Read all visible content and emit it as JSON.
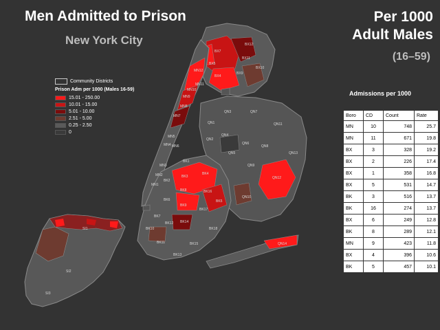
{
  "header": {
    "title": "Men Admitted to Prison",
    "subtitle": "New York City",
    "per_line1": "Per 1000",
    "per_line2": "Adult Males",
    "age_range": "(16–59)"
  },
  "legend": {
    "boundary_label": "Community Districts",
    "title": "Prison Adm per 1000 (Males 16-59)",
    "classes": [
      {
        "label": "15.01 - 250.00",
        "color": "#ff1a1a"
      },
      {
        "label": "10.01 - 15.00",
        "color": "#c81414"
      },
      {
        "label": "5.01 - 10.00",
        "color": "#7a0c0c"
      },
      {
        "label": "2.51 - 5.00",
        "color": "#6e3b30"
      },
      {
        "label": "0.25 - 2.50",
        "color": "#5a5a5a"
      },
      {
        "label": "0",
        "color": "#3a3a3a"
      }
    ]
  },
  "map_labels": [
    "BX7",
    "BX12",
    "BX5",
    "BX4",
    "BX9",
    "BX10",
    "BX11",
    "MN12",
    "MN11",
    "MN10",
    "MN9",
    "MN8",
    "MN7",
    "MN5",
    "MN4",
    "MN6",
    "MN3",
    "MN2",
    "MN1",
    "QN1",
    "QN3",
    "QN4",
    "QN7",
    "QN11",
    "QN2",
    "QN5",
    "QN6",
    "QN8",
    "QN9",
    "QN13",
    "QN12",
    "QN10",
    "QN14",
    "BK1",
    "BK2",
    "BK3",
    "BK4",
    "BK5",
    "BK6",
    "BK7",
    "BK8",
    "BK9",
    "BK10",
    "BK11",
    "BK12",
    "BK13",
    "BK14",
    "BK15",
    "BK16",
    "BK17",
    "BK18",
    "SI1",
    "SI2",
    "SI3"
  ],
  "admissions": {
    "title": "Admissions per 1000",
    "columns": [
      "Boro",
      "CD",
      "Count",
      "Rate"
    ],
    "rows": [
      [
        "MN",
        "10",
        "748",
        "25.7"
      ],
      [
        "MN",
        "11",
        "671",
        "19.8"
      ],
      [
        "BX",
        "3",
        "328",
        "19.2"
      ],
      [
        "BX",
        "2",
        "226",
        "17.4"
      ],
      [
        "BX",
        "1",
        "358",
        "16.8"
      ],
      [
        "BX",
        "5",
        "531",
        "14.7"
      ],
      [
        "BK",
        "3",
        "516",
        "13.7"
      ],
      [
        "BK",
        "16",
        "274",
        "13.7"
      ],
      [
        "BX",
        "6",
        "249",
        "12.8"
      ],
      [
        "BK",
        "8",
        "289",
        "12.1"
      ],
      [
        "MN",
        "9",
        "423",
        "11.8"
      ],
      [
        "BX",
        "4",
        "396",
        "10.6"
      ],
      [
        "BK",
        "5",
        "457",
        "10.1"
      ]
    ]
  }
}
